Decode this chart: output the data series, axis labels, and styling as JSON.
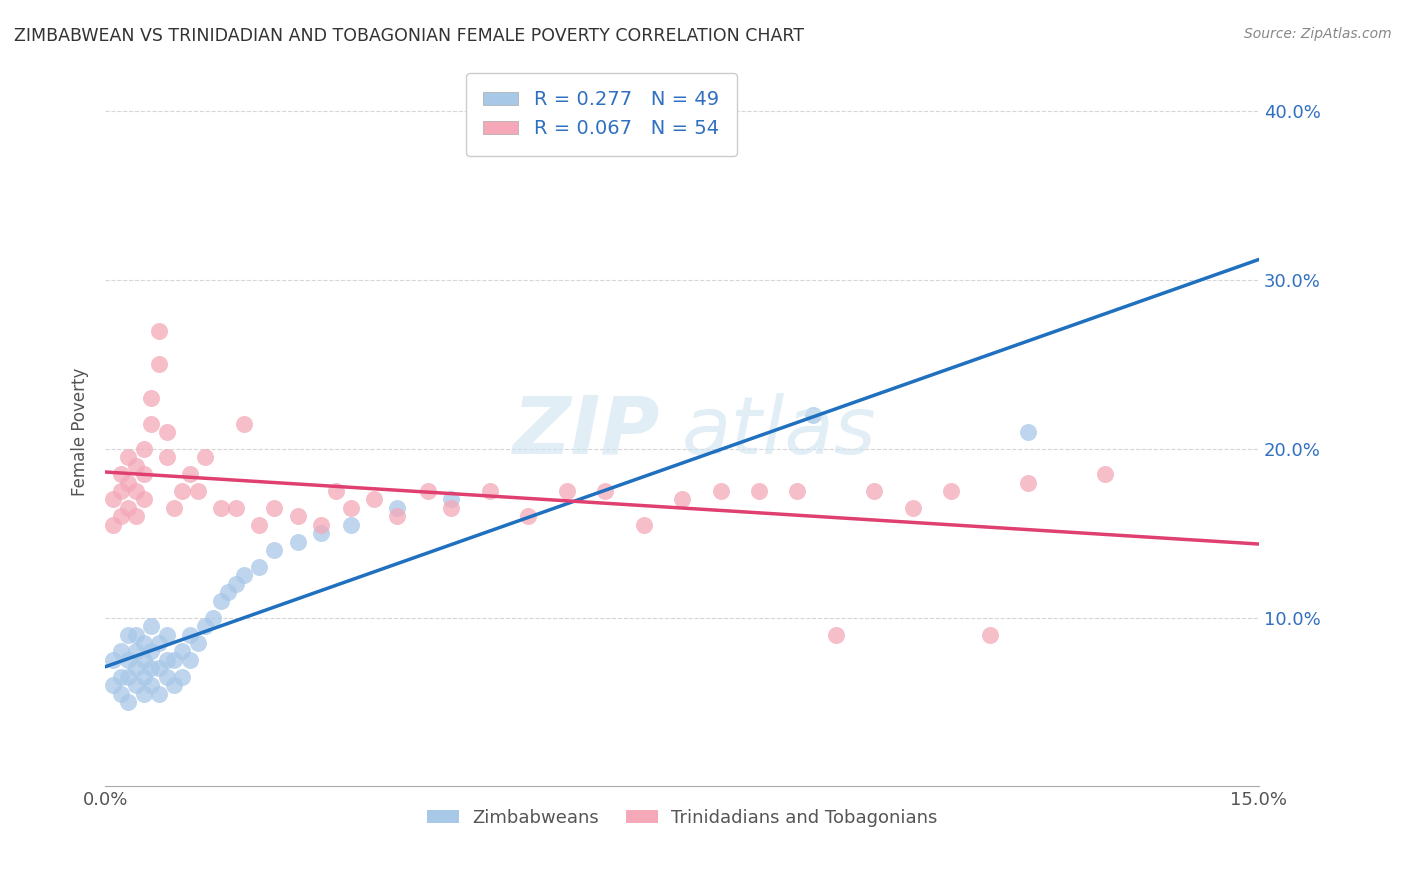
{
  "title": "ZIMBABWEAN VS TRINIDADIAN AND TOBAGONIAN FEMALE POVERTY CORRELATION CHART",
  "source": "Source: ZipAtlas.com",
  "ylabel": "Female Poverty",
  "xlim": [
    0.0,
    0.15
  ],
  "ylim": [
    0.0,
    0.42
  ],
  "xticks": [
    0.0,
    0.03,
    0.06,
    0.09,
    0.12,
    0.15
  ],
  "xticklabels": [
    "0.0%",
    "",
    "",
    "",
    "",
    "15.0%"
  ],
  "yticks": [
    0.1,
    0.2,
    0.3,
    0.4
  ],
  "yticklabels": [
    "10.0%",
    "20.0%",
    "30.0%",
    "40.0%"
  ],
  "blue_R": 0.277,
  "blue_N": 49,
  "pink_R": 0.067,
  "pink_N": 54,
  "blue_color": "#a8c8e8",
  "pink_color": "#f4a8b8",
  "blue_line_color": "#2070c0",
  "pink_line_color": "#e04070",
  "tick_label_color": "#3070c0",
  "blue_label": "Zimbabweans",
  "pink_label": "Trinidadians and Tobagonians",
  "blue_scatter_x": [
    0.001,
    0.001,
    0.002,
    0.002,
    0.002,
    0.003,
    0.003,
    0.003,
    0.003,
    0.004,
    0.004,
    0.004,
    0.004,
    0.005,
    0.005,
    0.005,
    0.005,
    0.006,
    0.006,
    0.006,
    0.006,
    0.007,
    0.007,
    0.007,
    0.008,
    0.008,
    0.008,
    0.009,
    0.009,
    0.01,
    0.01,
    0.011,
    0.011,
    0.012,
    0.013,
    0.014,
    0.015,
    0.016,
    0.017,
    0.018,
    0.02,
    0.022,
    0.025,
    0.028,
    0.032,
    0.038,
    0.045,
    0.092,
    0.12
  ],
  "blue_scatter_y": [
    0.06,
    0.075,
    0.055,
    0.065,
    0.08,
    0.05,
    0.065,
    0.075,
    0.09,
    0.06,
    0.07,
    0.08,
    0.09,
    0.055,
    0.065,
    0.075,
    0.085,
    0.06,
    0.07,
    0.08,
    0.095,
    0.055,
    0.07,
    0.085,
    0.065,
    0.075,
    0.09,
    0.06,
    0.075,
    0.065,
    0.08,
    0.075,
    0.09,
    0.085,
    0.095,
    0.1,
    0.11,
    0.115,
    0.12,
    0.125,
    0.13,
    0.14,
    0.145,
    0.15,
    0.155,
    0.165,
    0.17,
    0.22,
    0.21
  ],
  "pink_scatter_x": [
    0.001,
    0.001,
    0.002,
    0.002,
    0.002,
    0.003,
    0.003,
    0.003,
    0.004,
    0.004,
    0.004,
    0.005,
    0.005,
    0.005,
    0.006,
    0.006,
    0.007,
    0.007,
    0.008,
    0.008,
    0.009,
    0.01,
    0.011,
    0.012,
    0.013,
    0.015,
    0.017,
    0.018,
    0.02,
    0.022,
    0.025,
    0.028,
    0.03,
    0.032,
    0.035,
    0.038,
    0.042,
    0.045,
    0.05,
    0.055,
    0.06,
    0.065,
    0.07,
    0.075,
    0.08,
    0.085,
    0.09,
    0.095,
    0.1,
    0.105,
    0.11,
    0.115,
    0.12,
    0.13
  ],
  "pink_scatter_y": [
    0.155,
    0.17,
    0.16,
    0.175,
    0.185,
    0.165,
    0.18,
    0.195,
    0.16,
    0.175,
    0.19,
    0.17,
    0.185,
    0.2,
    0.215,
    0.23,
    0.25,
    0.27,
    0.195,
    0.21,
    0.165,
    0.175,
    0.185,
    0.175,
    0.195,
    0.165,
    0.165,
    0.215,
    0.155,
    0.165,
    0.16,
    0.155,
    0.175,
    0.165,
    0.17,
    0.16,
    0.175,
    0.165,
    0.175,
    0.16,
    0.175,
    0.175,
    0.155,
    0.17,
    0.175,
    0.175,
    0.175,
    0.09,
    0.175,
    0.165,
    0.175,
    0.09,
    0.18,
    0.185
  ]
}
